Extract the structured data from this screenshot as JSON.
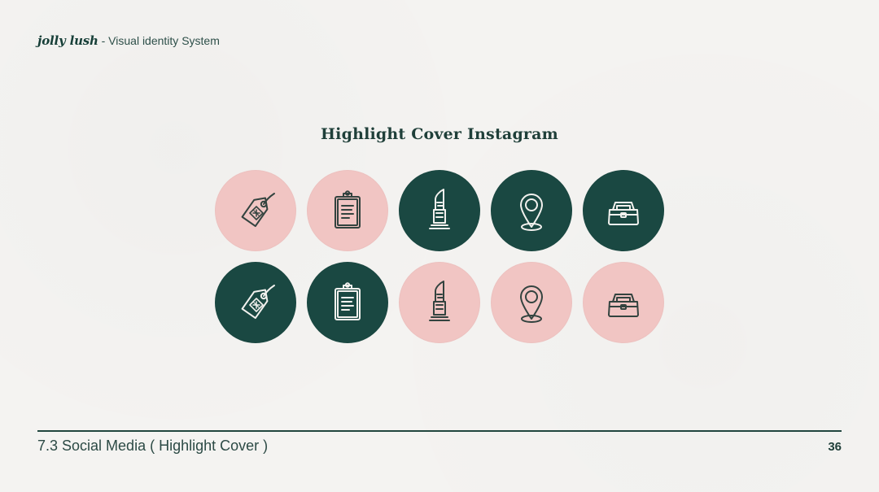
{
  "header": {
    "brand": "jolly lush",
    "subtitle": " - Visual identity System"
  },
  "section_title": "Highlight Cover Instagram",
  "covers": [
    {
      "name": "price-tag-icon",
      "background": "pink",
      "color": "#f1c5c3"
    },
    {
      "name": "clipboard-icon",
      "background": "pink",
      "color": "#f1c5c3"
    },
    {
      "name": "lipstick-icon",
      "background": "green",
      "color": "#1a4842"
    },
    {
      "name": "location-pin-icon",
      "background": "green",
      "color": "#1a4842"
    },
    {
      "name": "makeup-bag-icon",
      "background": "green",
      "color": "#1a4842"
    },
    {
      "name": "price-tag-icon",
      "background": "green",
      "color": "#1a4842"
    },
    {
      "name": "clipboard-icon",
      "background": "green",
      "color": "#1a4842"
    },
    {
      "name": "lipstick-icon",
      "background": "pink",
      "color": "#f1c5c3"
    },
    {
      "name": "location-pin-icon",
      "background": "pink",
      "color": "#f1c5c3"
    },
    {
      "name": "makeup-bag-icon",
      "background": "pink",
      "color": "#f1c5c3"
    }
  ],
  "footer": {
    "section": "7.3 Social Media ( Highlight Cover )",
    "page_number": "36"
  },
  "colors": {
    "background": "#f4f3f1",
    "pink": "#f1c5c3",
    "green": "#1a4842",
    "text": "#1d433d"
  }
}
